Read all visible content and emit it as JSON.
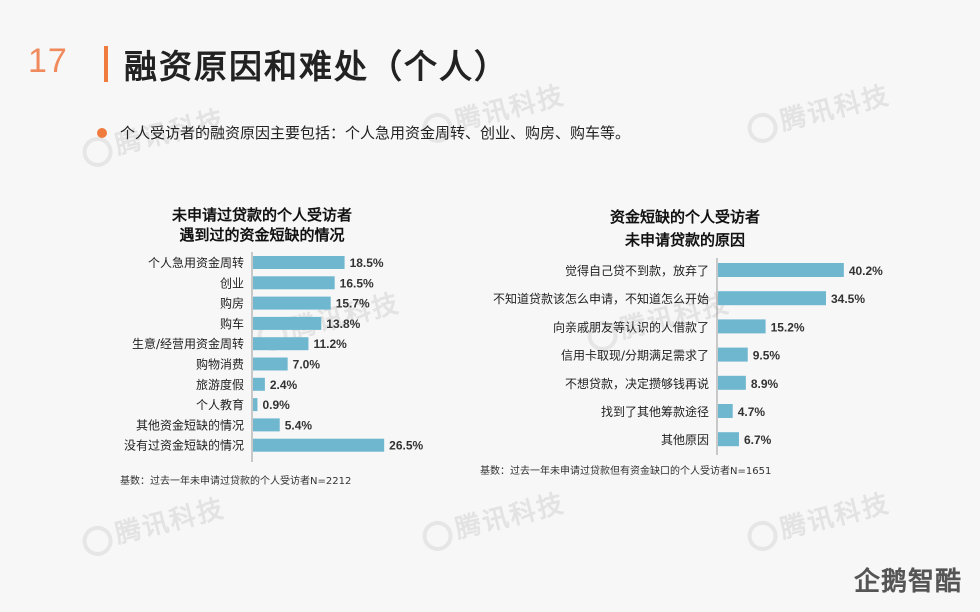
{
  "page": {
    "number": "17",
    "title": "融资原因和难处（个人）",
    "subtitle": "个人受访者的融资原因主要包括：个人急用资金周转、创业、购房、购车等。",
    "watermark": "腾讯科技",
    "logo": "企鹅智酷"
  },
  "colors": {
    "bar": "#6fb7cf",
    "accent": "#f07b3f"
  },
  "chart_data": [
    {
      "type": "bar",
      "orientation": "horizontal",
      "title_lines": [
        "未申请过贷款的个人受访者",
        "遇到过的资金短缺的情况"
      ],
      "categories": [
        "个人急用资金周转",
        "创业",
        "购房",
        "购车",
        "生意/经营用资金周转",
        "购物消费",
        "旅游度假",
        "个人教育",
        "其他资金短缺的情况",
        "没有过资金短缺的情况"
      ],
      "values": [
        18.5,
        16.5,
        15.7,
        13.8,
        11.2,
        7.0,
        2.4,
        0.9,
        5.4,
        26.5
      ],
      "value_labels": [
        "18.5%",
        "16.5%",
        "15.7%",
        "13.8%",
        "11.2%",
        "7.0%",
        "2.4%",
        "0.9%",
        "5.4%",
        "26.5%"
      ],
      "footnote": "基数：过去一年未申请过贷款的个人受访者N=2212"
    },
    {
      "type": "bar",
      "orientation": "horizontal",
      "title_lines": [
        "资金短缺的个人受访者",
        "未申请贷款的原因"
      ],
      "categories": [
        "觉得自己贷不到款，放弃了",
        "不知道贷款该怎么申请，不知道怎么开始",
        "向亲戚朋友等认识的人借款了",
        "信用卡取现/分期满足需求了",
        "不想贷款，决定攒够钱再说",
        "找到了其他筹款途径",
        "其他原因"
      ],
      "values": [
        40.2,
        34.5,
        15.2,
        9.5,
        8.9,
        4.7,
        6.7
      ],
      "value_labels": [
        "40.2%",
        "34.5%",
        "15.2%",
        "9.5%",
        "8.9%",
        "4.7%",
        "6.7%"
      ],
      "footnote": "基数：过去一年未申请过贷款但有资金缺口的个人受访者N=1651"
    }
  ]
}
